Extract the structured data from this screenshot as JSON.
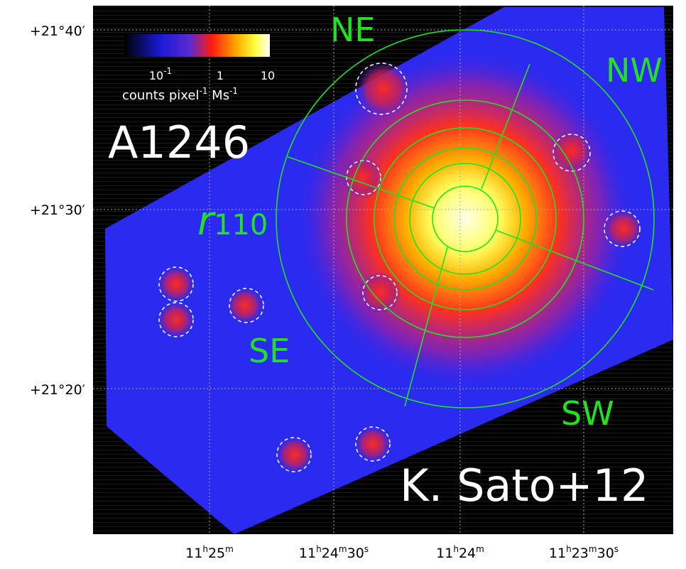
{
  "axes": {
    "y_labels": [
      "+21°40′",
      "+21°30′",
      "+21°20′"
    ],
    "x_labels": [
      {
        "parts": [
          "11",
          "h",
          "25",
          "m"
        ]
      },
      {
        "parts": [
          "11",
          "h",
          "24",
          "m",
          "30",
          "s"
        ]
      },
      {
        "parts": [
          "11",
          "h",
          "24",
          "m"
        ]
      },
      {
        "parts": [
          "11",
          "h",
          "23",
          "m",
          "30",
          "s"
        ]
      }
    ]
  },
  "colorbar": {
    "ticks": [
      {
        "parts": [
          "10",
          "-1"
        ]
      },
      {
        "parts": [
          "1"
        ]
      },
      {
        "parts": [
          "10"
        ]
      }
    ],
    "label": {
      "parts": [
        "counts pixel",
        "-1",
        " Ms",
        "-1"
      ]
    }
  },
  "annotations": {
    "cluster": "A1246",
    "radius": {
      "main": "r",
      "sub": "110"
    },
    "directions": [
      "NE",
      "NW",
      "SE",
      "SW"
    ],
    "credit": "K. Sato+12"
  }
}
